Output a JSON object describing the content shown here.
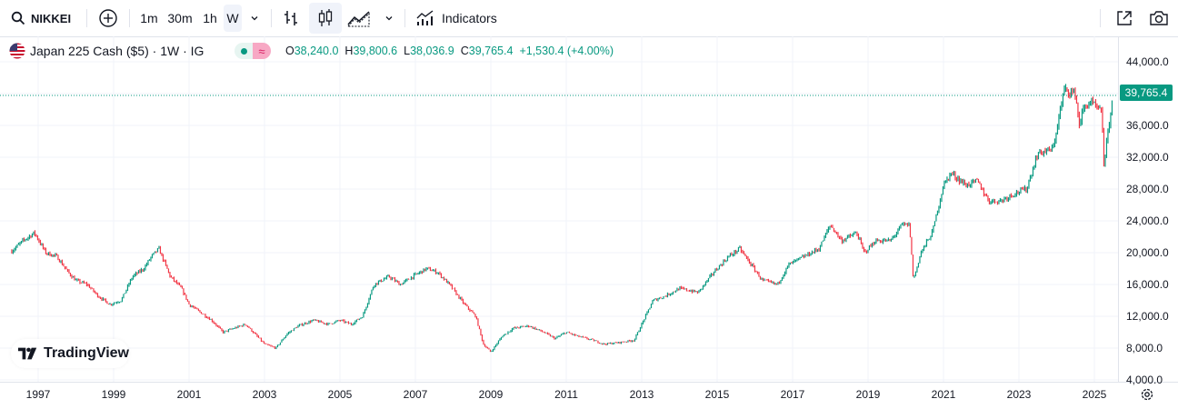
{
  "toolbar": {
    "symbol": "NIKKEI",
    "intervals": [
      "1m",
      "30m",
      "1h",
      "W"
    ],
    "indicators_label": "Indicators"
  },
  "legend": {
    "title": "Japan 225 Cash ($5) · 1W · IG",
    "o_label": "O",
    "o_value": "38,240.0",
    "h_label": "H",
    "h_value": "39,800.6",
    "l_label": "L",
    "l_value": "38,036.9",
    "c_label": "C",
    "c_value": "39,765.4",
    "change": "+1,530.4 (+4.00%)"
  },
  "price_axis": {
    "labels": [
      "44,000.0",
      "40,000.0",
      "36,000.0",
      "32,000.0",
      "28,000.0",
      "24,000.0",
      "20,000.0",
      "16,000.0",
      "12,000.0",
      "8,000.0",
      "4,000.0"
    ],
    "last_price": "39,765.4"
  },
  "time_axis": {
    "labels": [
      "1997",
      "1999",
      "2001",
      "2003",
      "2005",
      "2007",
      "2009",
      "2011",
      "2013",
      "2015",
      "2017",
      "2019",
      "2021",
      "2023",
      "2025"
    ]
  },
  "brand": "TradingView",
  "colors": {
    "up": "#089981",
    "down": "#f23645"
  },
  "chart_data": {
    "type": "line",
    "title": "Japan 225 Cash ($5) · 1W · IG",
    "xlabel": "",
    "ylabel": "",
    "ylim": [
      3000,
      46000
    ],
    "xlim": [
      1996.3,
      2025.8
    ],
    "grid": true,
    "series": [
      {
        "x": [
          1996.3,
          1996.6,
          1996.9,
          1997.2,
          1997.5,
          1997.8,
          1998.0,
          1998.3,
          1998.6,
          1998.9,
          1999.2,
          1999.5,
          1999.8,
          2000.0,
          2000.2,
          2000.5,
          2000.8,
          2001.0,
          2001.3,
          2001.6,
          2001.9,
          2002.2,
          2002.5,
          2002.8,
          2003.0,
          2003.3,
          2003.6,
          2003.9,
          2004.3,
          2004.7,
          2005.0,
          2005.3,
          2005.6,
          2005.9,
          2006.3,
          2006.6,
          2007.0,
          2007.3,
          2007.6,
          2007.9,
          2008.3,
          2008.6,
          2008.8,
          2009.0,
          2009.3,
          2009.6,
          2010.0,
          2010.4,
          2010.7,
          2011.0,
          2011.3,
          2011.7,
          2012.0,
          2012.4,
          2012.8,
          2013.0,
          2013.3,
          2013.6,
          2014.0,
          2014.5,
          2014.9,
          2015.3,
          2015.6,
          2015.9,
          2016.2,
          2016.6,
          2016.9,
          2017.3,
          2017.7,
          2018.0,
          2018.3,
          2018.7,
          2018.9,
          2019.2,
          2019.6,
          2019.9,
          2020.1,
          2020.2,
          2020.4,
          2020.7,
          2021.0,
          2021.2,
          2021.6,
          2021.9,
          2022.2,
          2022.5,
          2022.9,
          2023.2,
          2023.5,
          2023.9,
          2024.0,
          2024.2,
          2024.5,
          2024.6,
          2024.7,
          2024.9,
          2025.0,
          2025.2,
          2025.25,
          2025.4,
          2025.5
        ],
        "y": [
          20200,
          21500,
          22500,
          20000,
          19500,
          17500,
          16500,
          16000,
          14500,
          13500,
          14000,
          17000,
          18000,
          19500,
          20500,
          17000,
          15500,
          13500,
          12500,
          11500,
          10000,
          10500,
          11000,
          9500,
          8500,
          8000,
          9800,
          10800,
          11500,
          11000,
          11500,
          11000,
          12000,
          16000,
          17000,
          16000,
          17200,
          18000,
          17500,
          16000,
          13500,
          12000,
          8500,
          7500,
          9500,
          10500,
          10800,
          10000,
          9200,
          10000,
          9500,
          9000,
          8500,
          8700,
          9000,
          11000,
          14000,
          14500,
          15500,
          15000,
          17500,
          19500,
          20500,
          18500,
          16500,
          16000,
          18500,
          19500,
          20500,
          23500,
          21500,
          22500,
          20000,
          21500,
          21500,
          23500,
          23500,
          16500,
          20000,
          22500,
          28500,
          30000,
          28500,
          29000,
          26500,
          26500,
          27500,
          28000,
          32500,
          33000,
          35500,
          40500,
          40000,
          36000,
          38000,
          39000,
          38500,
          37500,
          31000,
          36500,
          39765
        ]
      }
    ]
  }
}
